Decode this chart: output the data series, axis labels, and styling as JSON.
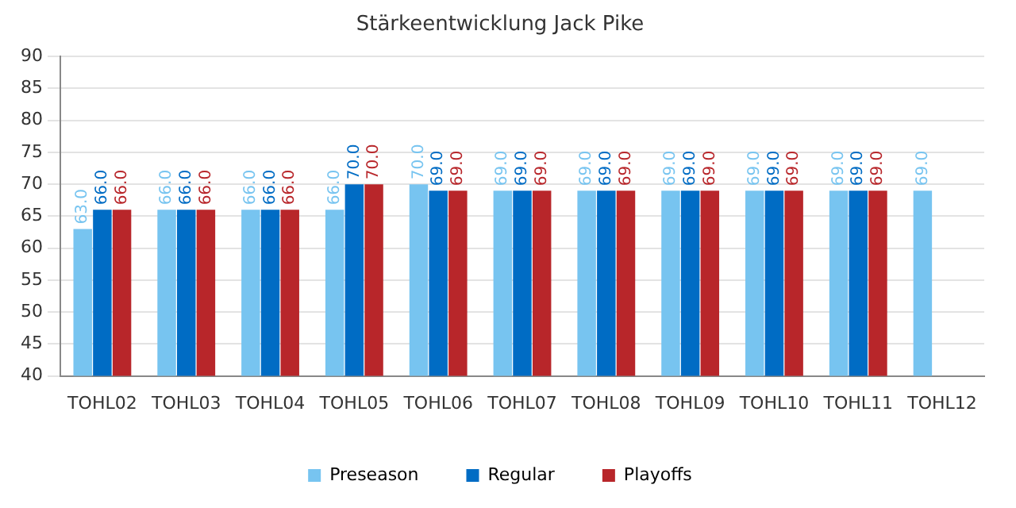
{
  "chart_data": {
    "type": "bar",
    "title": "Stärkeentwicklung Jack Pike",
    "categories": [
      "TOHL02",
      "TOHL03",
      "TOHL04",
      "TOHL05",
      "TOHL06",
      "TOHL07",
      "TOHL08",
      "TOHL09",
      "TOHL10",
      "TOHL11",
      "TOHL12"
    ],
    "series": [
      {
        "name": "Preseason",
        "color": "#77c4f0",
        "values": [
          63,
          66,
          66,
          66,
          70,
          69,
          69,
          69,
          69,
          69,
          69
        ],
        "value_labels": [
          "63.0",
          "66.0",
          "66.0",
          "66.0",
          "70.0",
          "69.0",
          "69.0",
          "69.0",
          "69.0",
          "69.0",
          "69.0"
        ]
      },
      {
        "name": "Regular",
        "color": "#006cc4",
        "values": [
          66,
          66,
          66,
          70,
          69,
          69,
          69,
          69,
          69,
          69,
          null
        ],
        "value_labels": [
          "66.0",
          "66.0",
          "66.0",
          "70.0",
          "69.0",
          "69.0",
          "69.0",
          "69.0",
          "69.0",
          "69.0",
          null
        ]
      },
      {
        "name": "Playoffs",
        "color": "#b8262a",
        "values": [
          66,
          66,
          66,
          70,
          69,
          69,
          69,
          69,
          69,
          69,
          null
        ],
        "value_labels": [
          "66.0",
          "66.0",
          "66.0",
          "70.0",
          "69.0",
          "69.0",
          "69.0",
          "69.0",
          "69.0",
          "69.0",
          null
        ]
      }
    ],
    "ylim": [
      40,
      90
    ],
    "yticks": [
      40,
      45,
      50,
      55,
      60,
      65,
      70,
      75,
      80,
      85,
      90
    ],
    "grid": "y",
    "legend": "bottom"
  }
}
